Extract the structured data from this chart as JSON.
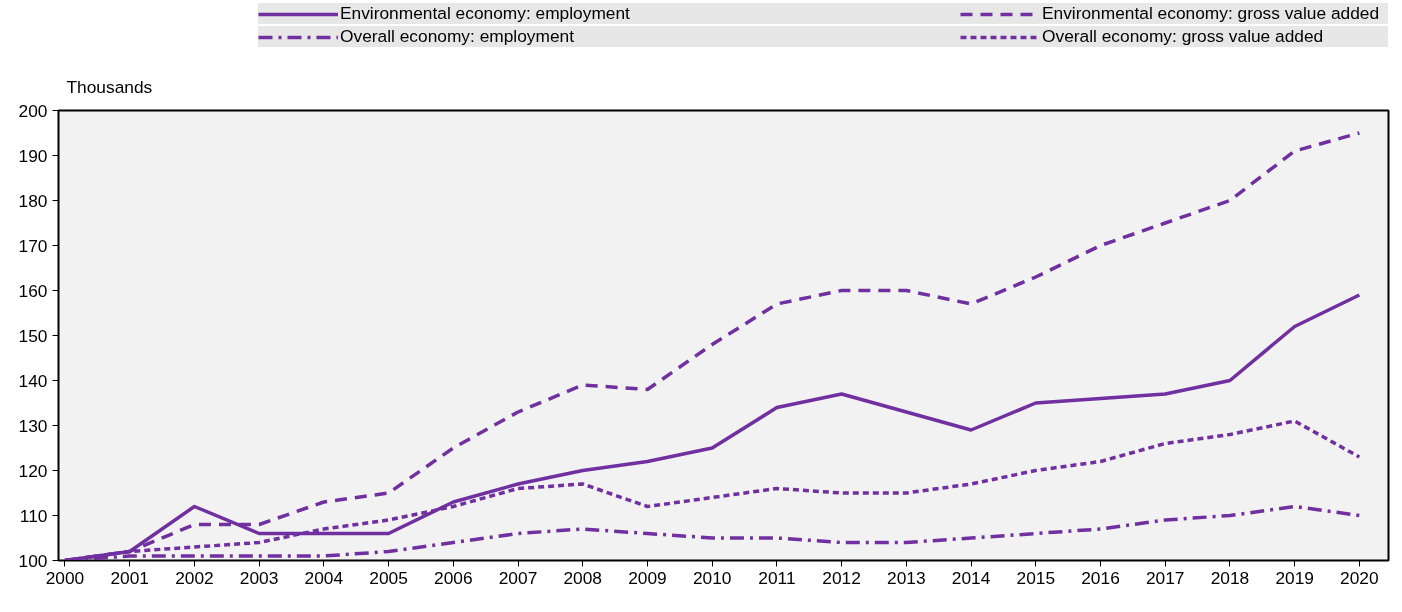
{
  "chart_data": {
    "type": "line",
    "ylabel": "Thousands",
    "x": [
      2000,
      2001,
      2002,
      2003,
      2004,
      2005,
      2006,
      2007,
      2008,
      2009,
      2010,
      2011,
      2012,
      2013,
      2014,
      2015,
      2016,
      2017,
      2018,
      2019,
      2020
    ],
    "xlim": [
      1999.9,
      2020.45
    ],
    "xticks": [
      2000,
      2001,
      2002,
      2003,
      2004,
      2005,
      2006,
      2007,
      2008,
      2009,
      2010,
      2011,
      2012,
      2013,
      2014,
      2015,
      2016,
      2017,
      2018,
      2019,
      2020
    ],
    "ylim": [
      100,
      200
    ],
    "yticks": [
      100,
      110,
      120,
      130,
      140,
      150,
      160,
      170,
      180,
      190,
      200
    ],
    "grid": false,
    "legend": "top",
    "marker": "none",
    "series": [
      {
        "name": "Environmental economy: employment",
        "color": "#7030a0",
        "line_style": "solid",
        "values": [
          100,
          102,
          112,
          106,
          106,
          106,
          113,
          117,
          120,
          122,
          125,
          134,
          137,
          133,
          129,
          135,
          136,
          137,
          140,
          152,
          159
        ]
      },
      {
        "name": "Environmental economy: gross value added",
        "color": "#7030a0",
        "line_style": "dashed",
        "values": [
          100,
          102,
          108,
          108,
          113,
          115,
          125,
          133,
          139,
          138,
          148,
          157,
          160,
          160,
          157,
          163,
          170,
          175,
          180,
          191,
          195
        ]
      },
      {
        "name": "Overall economy: employment",
        "color": "#7030a0",
        "line_style": "dashdot",
        "values": [
          100,
          101,
          101,
          101,
          101,
          102,
          104,
          106,
          107,
          106,
          105,
          105,
          104,
          104,
          105,
          106,
          107,
          109,
          110,
          112,
          110
        ]
      },
      {
        "name": "Overall economy: gross value added",
        "color": "#7030a0",
        "line_style": "dotted",
        "values": [
          100,
          102,
          103,
          104,
          107,
          109,
          112,
          116,
          117,
          112,
          114,
          116,
          115,
          115,
          117,
          120,
          122,
          126,
          128,
          131,
          123
        ]
      }
    ]
  }
}
